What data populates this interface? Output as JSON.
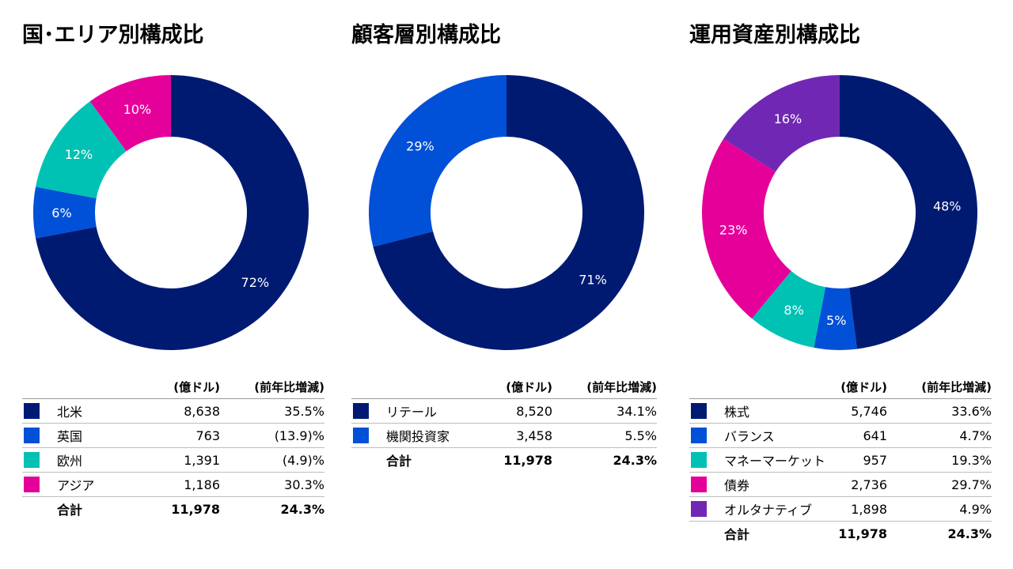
{
  "headers": {
    "unit": "(億ドル)",
    "change": "(前年比増減)"
  },
  "chart_data": [
    {
      "type": "pie",
      "title": "国･エリア別構成比",
      "slices": [
        {
          "name": "北米",
          "value": 72,
          "label": "72%",
          "color": "#001a72"
        },
        {
          "name": "英国",
          "value": 6,
          "label": "6%",
          "color": "#0050d8"
        },
        {
          "name": "欧州",
          "value": 12,
          "label": "12%",
          "color": "#00c2b4"
        },
        {
          "name": "アジア",
          "value": 10,
          "label": "10%",
          "color": "#e6009a"
        }
      ],
      "table": {
        "rows": [
          {
            "name": "北米",
            "amount": "8,638",
            "change": "35.5%",
            "color": "#001a72"
          },
          {
            "name": "英国",
            "amount": "763",
            "change": "(13.9)%",
            "color": "#0050d8"
          },
          {
            "name": "欧州",
            "amount": "1,391",
            "change": "(4.9)%",
            "color": "#00c2b4"
          },
          {
            "name": "アジア",
            "amount": "1,186",
            "change": "30.3%",
            "color": "#e6009a"
          }
        ],
        "total": {
          "name": "合計",
          "amount": "11,978",
          "change": "24.3%"
        }
      }
    },
    {
      "type": "pie",
      "title": "顧客層別構成比",
      "slices": [
        {
          "name": "リテール",
          "value": 71,
          "label": "71%",
          "color": "#001a72"
        },
        {
          "name": "機関投資家",
          "value": 29,
          "label": "29%",
          "color": "#0050d8"
        }
      ],
      "table": {
        "rows": [
          {
            "name": "リテール",
            "amount": "8,520",
            "change": "34.1%",
            "color": "#001a72"
          },
          {
            "name": "機関投資家",
            "amount": "3,458",
            "change": "5.5%",
            "color": "#0050d8"
          }
        ],
        "total": {
          "name": "合計",
          "amount": "11,978",
          "change": "24.3%"
        }
      }
    },
    {
      "type": "pie",
      "title": "運用資産別構成比",
      "slices": [
        {
          "name": "株式",
          "value": 48,
          "label": "48%",
          "color": "#001a72"
        },
        {
          "name": "バランス",
          "value": 5,
          "label": "5%",
          "color": "#0050d8"
        },
        {
          "name": "マネーマーケット",
          "value": 8,
          "label": "8%",
          "color": "#00c2b4"
        },
        {
          "name": "債券",
          "value": 23,
          "label": "23%",
          "color": "#e6009a"
        },
        {
          "name": "オルタナティブ",
          "value": 16,
          "label": "16%",
          "color": "#7028b4"
        }
      ],
      "table": {
        "rows": [
          {
            "name": "株式",
            "amount": "5,746",
            "change": "33.6%",
            "color": "#001a72"
          },
          {
            "name": "バランス",
            "amount": "641",
            "change": "4.7%",
            "color": "#0050d8"
          },
          {
            "name": "マネーマーケット",
            "amount": "957",
            "change": "19.3%",
            "color": "#00c2b4"
          },
          {
            "name": "債券",
            "amount": "2,736",
            "change": "29.7%",
            "color": "#e6009a"
          },
          {
            "name": "オルタナティブ",
            "amount": "1,898",
            "change": "4.9%",
            "color": "#7028b4"
          }
        ],
        "total": {
          "name": "合計",
          "amount": "11,978",
          "change": "24.3%"
        }
      }
    }
  ]
}
